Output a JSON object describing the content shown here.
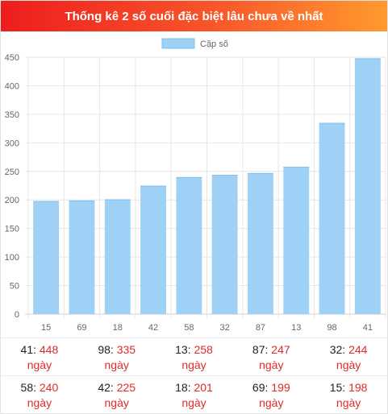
{
  "header": {
    "title": "Thống kê 2 số cuối đặc biệt lâu chưa về nhất"
  },
  "chart_data": {
    "type": "bar",
    "title": "Thống kê 2 số cuối đặc biệt lâu chưa về nhất",
    "categories": [
      "15",
      "69",
      "18",
      "42",
      "58",
      "32",
      "87",
      "13",
      "98",
      "41"
    ],
    "series": [
      {
        "name": "Cặp số",
        "values": [
          198,
          199,
          201,
          225,
          240,
          244,
          247,
          258,
          335,
          448
        ],
        "color": "#9fd0f5"
      }
    ],
    "ylim": [
      0,
      450
    ],
    "yticks": [
      "450",
      "400",
      "350",
      "300",
      "250",
      "200",
      "150",
      "100",
      "50",
      "0"
    ],
    "grid": true,
    "legend": "top-center"
  },
  "stats": {
    "unit": "ngày",
    "rows": [
      [
        {
          "num": "41",
          "value": "448"
        },
        {
          "num": "98",
          "value": "335"
        },
        {
          "num": "13",
          "value": "258"
        },
        {
          "num": "87",
          "value": "247"
        },
        {
          "num": "32",
          "value": "244"
        }
      ],
      [
        {
          "num": "58",
          "value": "240"
        },
        {
          "num": "42",
          "value": "225"
        },
        {
          "num": "18",
          "value": "201"
        },
        {
          "num": "69",
          "value": "199"
        },
        {
          "num": "15",
          "value": "198"
        }
      ]
    ]
  }
}
